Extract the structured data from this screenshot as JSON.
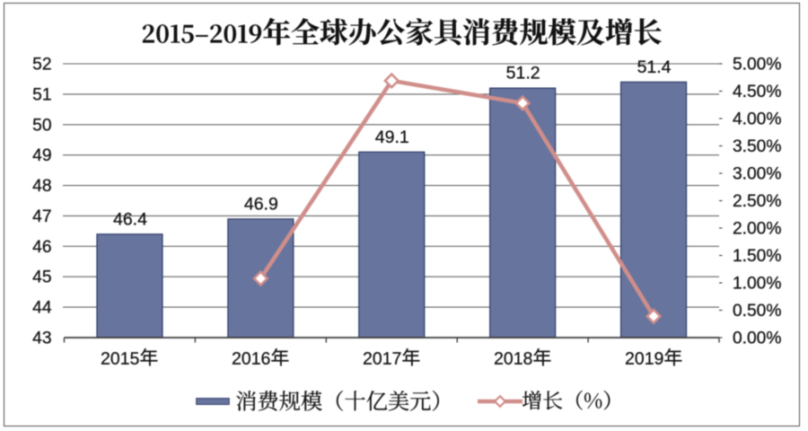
{
  "chart_data": {
    "type": "bar",
    "title": "2015-2019年全球办公家具消费规模及增长",
    "categories": [
      "2015年",
      "2016年",
      "2017年",
      "2018年",
      "2019年"
    ],
    "series": [
      {
        "name": "消费规模（十亿美元）",
        "type": "bar",
        "axis": "left",
        "values": [
          46.4,
          46.9,
          49.1,
          51.2,
          51.4
        ],
        "labels": [
          "46.4",
          "46.9",
          "49.1",
          "51.2",
          "51.4"
        ]
      },
      {
        "name": "增长（%）",
        "type": "line",
        "axis": "right",
        "marker": "diamond",
        "values": [
          null,
          1.08,
          4.69,
          4.28,
          0.39
        ]
      }
    ],
    "left_axis": {
      "min": 43,
      "max": 52,
      "step": 1,
      "ticks": [
        "43",
        "44",
        "45",
        "46",
        "47",
        "48",
        "49",
        "50",
        "51",
        "52"
      ]
    },
    "right_axis": {
      "min": 0,
      "max": 5,
      "step": 0.5,
      "ticks": [
        "0.00%",
        "0.50%",
        "1.00%",
        "1.50%",
        "2.00%",
        "2.50%",
        "3.00%",
        "3.50%",
        "4.00%",
        "4.50%",
        "5.00%"
      ]
    },
    "grid": true,
    "legend_position": "bottom"
  },
  "colors": {
    "bar_fill": "#67749D",
    "bar_border": "#2E3A66",
    "line": "#D08E8B",
    "marker_fill": "#FFFFFF",
    "gridline": "#646464",
    "axis": "#3D3D3D",
    "text": "#141414",
    "frame": "#4F4F4F",
    "background": "#FFFFFF"
  }
}
